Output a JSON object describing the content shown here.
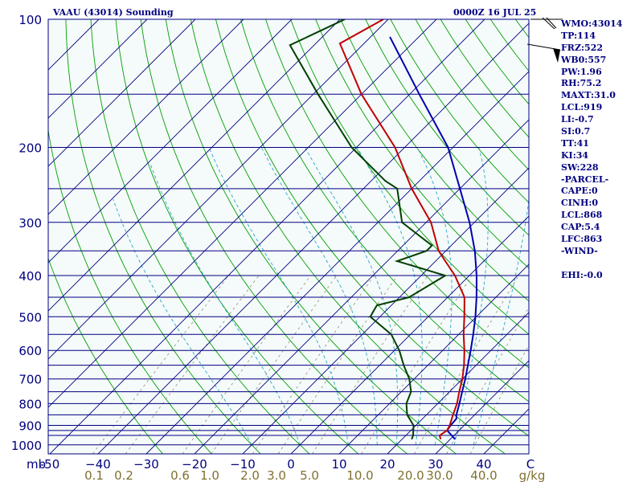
{
  "header": {
    "station": "VAAU (43014) Sounding",
    "datetime": "0000Z 16 JUL 25"
  },
  "stats": [
    "WMO:43014",
    "TP:114",
    "FRZ:522",
    "WB0:557",
    "PW:1.96",
    "RH:75.2",
    "MAXT:31.0",
    "LCL:919",
    "LI:-0.7",
    "SI:0.7",
    "TT:41",
    "KI:34",
    "SW:228",
    "-PARCEL-",
    "CAPE:0",
    "CINH:0",
    "LCL:868",
    "CAP:5.4",
    "LFC:863",
    "-WIND-",
    "",
    "EHI:-0.0"
  ],
  "colors": {
    "background": "#ffffff",
    "plot_background": "#f5fafa",
    "text": "#000080",
    "isobar": "#000080",
    "isotherm": "#000080",
    "dry_adiabat": "#00a000",
    "moist_adiabat": "#2aa8c8",
    "mixing_ratio": "#909070",
    "mixing_label": "#807030",
    "temperature": "#c00000",
    "dewpoint": "#004000",
    "parcel": "#0000b0"
  },
  "chart_data": {
    "type": "line",
    "title": "VAAU (43014) Sounding",
    "subtitle": "0000Z 16 JUL 25",
    "xlabel": "",
    "ylabel": "mb",
    "x_unit": "C",
    "p_range": [
      100,
      1050
    ],
    "pressure_ticks": [
      100,
      200,
      300,
      400,
      500,
      600,
      700,
      800,
      900,
      1000
    ],
    "isobars": [
      100,
      150,
      200,
      250,
      300,
      350,
      400,
      450,
      500,
      550,
      600,
      650,
      700,
      750,
      800,
      850,
      900,
      925,
      950,
      1000
    ],
    "temperature_ticks": [
      -50,
      -40,
      -30,
      -20,
      -10,
      0,
      10,
      20,
      30,
      40
    ],
    "temperature_tick_labels": [
      "-50",
      "−40",
      "−30",
      "−20",
      "−10",
      "0",
      "10",
      "20",
      "30",
      "40"
    ],
    "mixing_ratio_labels": [
      "0.1",
      "0.2",
      "0.6",
      "1.0",
      "2.0",
      "3.0",
      "5.0",
      "10.0",
      "20.0",
      "30.0",
      "40.0",
      "g/kg"
    ],
    "mixing_ratio_values": [
      0.1,
      0.2,
      0.6,
      1.0,
      2.0,
      3.0,
      5.0,
      10.0,
      20.0,
      30.0,
      40.0
    ],
    "grid": true,
    "series": [
      {
        "key": "temperature",
        "points": [
          [
            970,
            28.0
          ],
          [
            950,
            27.0
          ],
          [
            925,
            27.5
          ],
          [
            900,
            27.0
          ],
          [
            850,
            25.5
          ],
          [
            800,
            24.0
          ],
          [
            750,
            22.0
          ],
          [
            700,
            20.0
          ],
          [
            650,
            17.5
          ],
          [
            600,
            14.5
          ],
          [
            550,
            11.0
          ],
          [
            500,
            7.5
          ],
          [
            450,
            3.5
          ],
          [
            400,
            -3.0
          ],
          [
            370,
            -8.0
          ],
          [
            350,
            -11.5
          ],
          [
            300,
            -19.0
          ],
          [
            250,
            -30.0
          ],
          [
            200,
            -42.0
          ],
          [
            150,
            -60.0
          ],
          [
            114,
            -75.0
          ],
          [
            100,
            -71.0
          ]
        ]
      },
      {
        "key": "dewpoint",
        "points": [
          [
            970,
            22.0
          ],
          [
            950,
            21.5
          ],
          [
            900,
            19.5
          ],
          [
            850,
            16.0
          ],
          [
            800,
            13.5
          ],
          [
            750,
            12.0
          ],
          [
            700,
            9.0
          ],
          [
            650,
            5.0
          ],
          [
            600,
            1.0
          ],
          [
            550,
            -4.0
          ],
          [
            500,
            -12.0
          ],
          [
            470,
            -13.0
          ],
          [
            450,
            -8.0
          ],
          [
            400,
            -5.0
          ],
          [
            370,
            -18.0
          ],
          [
            350,
            -14.0
          ],
          [
            340,
            -14.0
          ],
          [
            300,
            -25.0
          ],
          [
            250,
            -33.0
          ],
          [
            240,
            -37.0
          ],
          [
            200,
            -51.0
          ],
          [
            150,
            -69.0
          ],
          [
            115,
            -85.0
          ],
          [
            100,
            -79.0
          ]
        ]
      },
      {
        "key": "parcel",
        "points": [
          [
            970,
            31.0
          ],
          [
            950,
            29.5
          ],
          [
            925,
            27.5
          ],
          [
            900,
            27.2
          ],
          [
            868,
            27.0
          ],
          [
            850,
            26.2
          ],
          [
            800,
            24.5
          ],
          [
            750,
            22.6
          ],
          [
            700,
            20.6
          ],
          [
            650,
            18.3
          ],
          [
            600,
            15.8
          ],
          [
            550,
            13.0
          ],
          [
            500,
            9.8
          ],
          [
            450,
            6.0
          ],
          [
            400,
            1.5
          ],
          [
            350,
            -4.0
          ],
          [
            300,
            -11.0
          ],
          [
            250,
            -20.0
          ],
          [
            200,
            -31.0
          ],
          [
            150,
            -48.0
          ],
          [
            110,
            -66.0
          ]
        ]
      }
    ]
  }
}
